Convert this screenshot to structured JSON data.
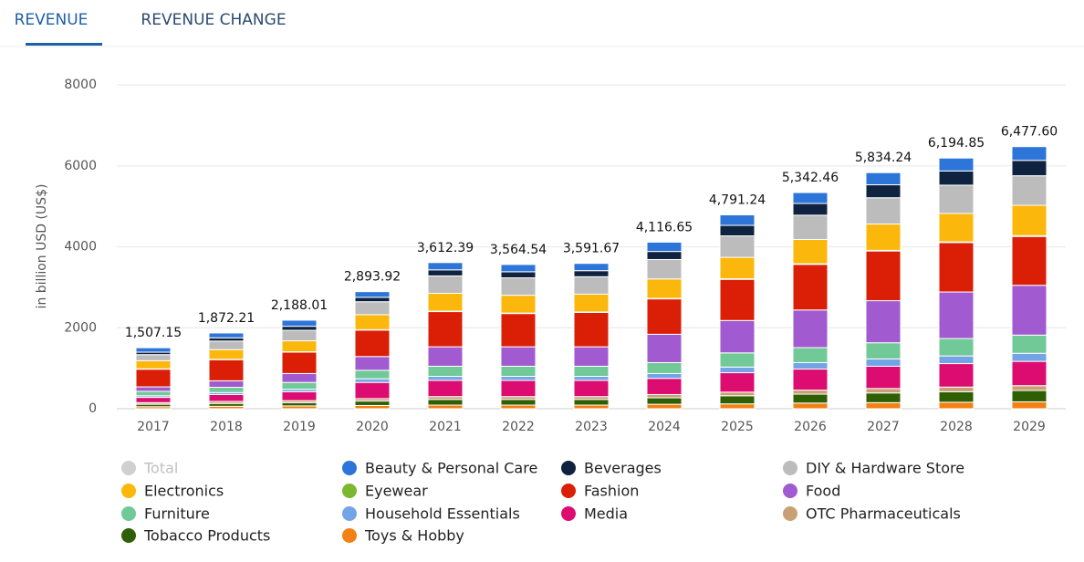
{
  "tabs": [
    "REVENUE",
    "REVENUE CHANGE"
  ],
  "chart_data": {
    "type": "stacked-bar",
    "y_label": "in billion USD (US$)",
    "categories": [
      "2017",
      "2018",
      "2019",
      "2020",
      "2021",
      "2022",
      "2023",
      "2024",
      "2025",
      "2026",
      "2027",
      "2028",
      "2029"
    ],
    "ylim": [
      0,
      8500
    ],
    "yticks": [
      0,
      2000,
      4000,
      6000,
      8000
    ],
    "grid": true,
    "series": [
      {
        "name": "Total",
        "color": "#c8c8c8",
        "visible": false,
        "values": [
          1507.15,
          1872.21,
          2188.01,
          2893.92,
          3612.39,
          3564.54,
          3591.67,
          4116.65,
          4791.24,
          5342.46,
          5834.24,
          6194.85,
          6477.6
        ],
        "value_labels": [
          "1,507.15",
          "1,872.21",
          "2,188.01",
          "2,893.92",
          "3,612.39",
          "3,564.54",
          "3,591.67",
          "4,116.65",
          "4,791.24",
          "5,342.46",
          "5,834.24",
          "6,194.85",
          "6,477.60"
        ]
      },
      {
        "name": "Beauty & Personal Care",
        "color": "#2d75d8",
        "values": [
          110,
          120,
          150,
          140,
          180,
          180,
          180,
          230,
          260,
          270,
          300,
          320,
          340
        ]
      },
      {
        "name": "Beverages",
        "color": "#0f2340",
        "values": [
          60,
          80,
          100,
          110,
          150,
          150,
          150,
          200,
          260,
          290,
          320,
          350,
          380
        ]
      },
      {
        "name": "DIY & Hardware Store",
        "color": "#bcbcbc",
        "values": [
          150,
          210,
          260,
          320,
          430,
          430,
          430,
          480,
          530,
          600,
          650,
          700,
          730
        ]
      },
      {
        "name": "Electronics",
        "color": "#fbb70b",
        "values": [
          200,
          240,
          270,
          370,
          440,
          440,
          440,
          480,
          530,
          600,
          650,
          700,
          750
        ]
      },
      {
        "name": "Eyewear",
        "color": "#7cb82f",
        "values": [
          10,
          10,
          10,
          10,
          12,
          12,
          12,
          12,
          14,
          15,
          16,
          18,
          20
        ]
      },
      {
        "name": "Fashion",
        "color": "#db1f06",
        "values": [
          437,
          522,
          528,
          654,
          870,
          822.54,
          849.67,
          874.65,
          1017.24,
          1127.46,
          1228.24,
          1221.85,
          1207.6
        ]
      },
      {
        "name": "Food",
        "color": "#a15acf",
        "values": [
          110,
          160,
          220,
          340,
          480,
          480,
          480,
          700,
          800,
          930,
          1040,
          1150,
          1230
        ]
      },
      {
        "name": "Furniture",
        "color": "#70c997",
        "values": [
          110,
          130,
          170,
          210,
          250,
          250,
          250,
          270,
          350,
          370,
          400,
          430,
          450
        ]
      },
      {
        "name": "Household Essentials",
        "color": "#72a4e6",
        "values": [
          40,
          50,
          60,
          90,
          100,
          100,
          100,
          120,
          140,
          160,
          180,
          190,
          200
        ]
      },
      {
        "name": "Media",
        "color": "#dc0c70",
        "values": [
          130,
          170,
          220,
          400,
          400,
          400,
          400,
          400,
          480,
          520,
          550,
          580,
          600
        ]
      },
      {
        "name": "OTC Pharmaceuticals",
        "color": "#c9a074",
        "values": [
          40,
          50,
          50,
          60,
          70,
          70,
          70,
          80,
          90,
          100,
          110,
          115,
          120
        ]
      },
      {
        "name": "Tobacco Products",
        "color": "#2f5f04",
        "values": [
          60,
          70,
          80,
          110,
          140,
          140,
          140,
          160,
          200,
          220,
          240,
          260,
          280
        ]
      },
      {
        "name": "Toys & Hobby",
        "color": "#f28015",
        "values": [
          50,
          60,
          70,
          80,
          90,
          90,
          90,
          110,
          120,
          140,
          150,
          160,
          170
        ]
      }
    ]
  }
}
